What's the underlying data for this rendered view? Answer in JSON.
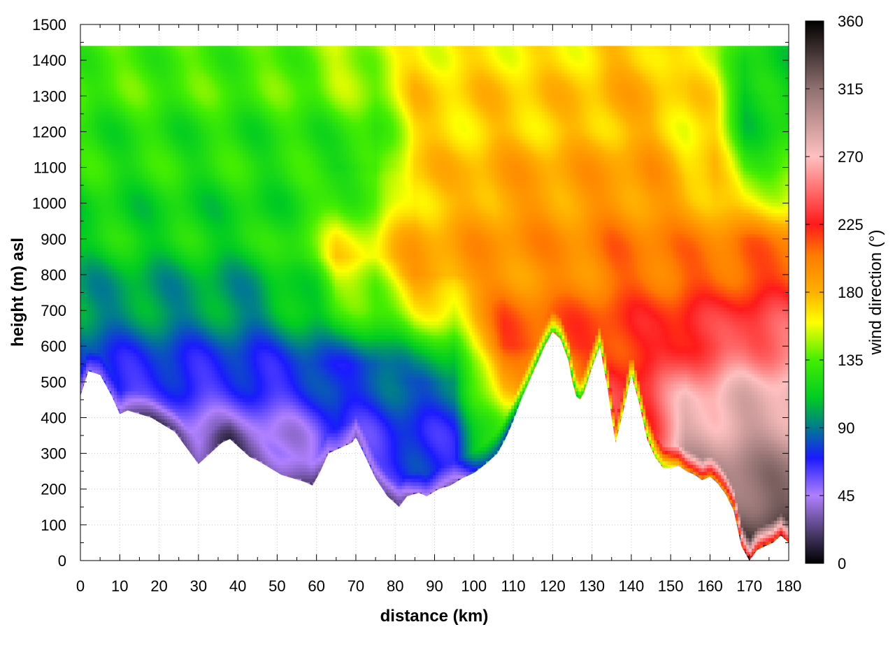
{
  "chart_data": {
    "type": "heatmap",
    "title": "",
    "xlabel": "distance (km)",
    "ylabel": "height (m) asl",
    "colorbar_label": "wind direction (°)",
    "xlim": [
      0,
      180
    ],
    "ylim": [
      0,
      1500
    ],
    "clim": [
      0,
      360
    ],
    "x_ticks": [
      0,
      10,
      20,
      30,
      40,
      50,
      60,
      70,
      80,
      90,
      100,
      110,
      120,
      130,
      140,
      150,
      160,
      170,
      180
    ],
    "y_ticks": [
      0,
      100,
      200,
      300,
      400,
      500,
      600,
      700,
      800,
      900,
      1000,
      1100,
      1200,
      1300,
      1400,
      1500
    ],
    "colorbar_ticks": [
      0,
      45,
      90,
      135,
      180,
      225,
      270,
      315,
      360
    ],
    "grid": true,
    "colormap": [
      {
        "v": 0,
        "color": "#000000"
      },
      {
        "v": 20,
        "color": "#4a3a6a"
      },
      {
        "v": 45,
        "color": "#b080ff"
      },
      {
        "v": 70,
        "color": "#1a1aff"
      },
      {
        "v": 90,
        "color": "#007a90"
      },
      {
        "v": 110,
        "color": "#00cc22"
      },
      {
        "v": 135,
        "color": "#44ee00"
      },
      {
        "v": 160,
        "color": "#ffff00"
      },
      {
        "v": 180,
        "color": "#ffb000"
      },
      {
        "v": 205,
        "color": "#ff7a00"
      },
      {
        "v": 225,
        "color": "#ff1a1a"
      },
      {
        "v": 270,
        "color": "#ffc0c0"
      },
      {
        "v": 315,
        "color": "#907070"
      },
      {
        "v": 360,
        "color": "#000000"
      }
    ],
    "terrain": {
      "x": [
        0,
        2,
        5,
        8,
        10,
        12,
        15,
        18,
        21,
        24,
        26,
        28,
        30,
        33,
        36,
        38,
        41,
        43,
        45,
        48,
        51,
        54,
        57,
        59,
        61,
        63,
        65,
        67,
        69,
        70,
        72,
        75,
        78,
        81,
        83,
        86,
        88,
        91,
        94,
        97,
        100,
        103,
        106,
        108,
        110,
        112,
        114,
        116,
        118,
        120,
        122,
        124,
        125,
        126,
        127,
        128,
        130,
        132,
        134,
        135,
        136,
        138,
        140,
        142,
        144,
        146,
        148,
        150,
        152,
        154,
        156,
        158,
        160,
        162,
        164,
        166,
        168,
        170,
        172,
        174,
        176,
        178,
        180
      ],
      "h": [
        460,
        530,
        520,
        460,
        410,
        420,
        410,
        400,
        380,
        360,
        330,
        300,
        270,
        300,
        330,
        340,
        310,
        290,
        280,
        260,
        240,
        230,
        220,
        210,
        250,
        300,
        310,
        320,
        330,
        345,
        300,
        230,
        180,
        150,
        180,
        190,
        180,
        200,
        210,
        230,
        245,
        270,
        300,
        340,
        390,
        450,
        500,
        550,
        600,
        640,
        620,
        560,
        500,
        460,
        450,
        470,
        540,
        600,
        480,
        400,
        330,
        420,
        520,
        440,
        340,
        290,
        260,
        260,
        265,
        250,
        240,
        225,
        235,
        215,
        185,
        140,
        40,
        0,
        30,
        40,
        50,
        70,
        50
      ]
    },
    "regions": [
      {
        "x_range": [
          0,
          60
        ],
        "profile_h": [
          0,
          350,
          550,
          700,
          900,
          1200,
          1500
        ],
        "profile_v": [
          20,
          40,
          75,
          95,
          115,
          125,
          140
        ]
      },
      {
        "x_range": [
          60,
          80
        ],
        "profile_h": [
          0,
          300,
          550,
          700,
          850,
          1100,
          1500
        ],
        "profile_v": [
          50,
          65,
          80,
          130,
          165,
          120,
          160
        ]
      },
      {
        "x_range": [
          80,
          100
        ],
        "profile_h": [
          0,
          300,
          500,
          650,
          800,
          1000,
          1500
        ],
        "profile_v": [
          60,
          70,
          85,
          140,
          190,
          175,
          165
        ]
      },
      {
        "x_range": [
          100,
          130
        ],
        "profile_h": [
          0,
          400,
          600,
          800,
          1000,
          1200,
          1500
        ],
        "profile_v": [
          80,
          150,
          215,
          195,
          190,
          175,
          165
        ]
      },
      {
        "x_range": [
          130,
          150
        ],
        "profile_h": [
          0,
          300,
          500,
          700,
          900,
          1200,
          1500
        ],
        "profile_v": [
          70,
          240,
          230,
          215,
          200,
          180,
          175
        ]
      },
      {
        "x_range": [
          150,
          165
        ],
        "profile_h": [
          0,
          250,
          450,
          600,
          800,
          1100,
          1500
        ],
        "profile_v": [
          330,
          300,
          270,
          235,
          210,
          170,
          160
        ]
      },
      {
        "x_range": [
          165,
          180
        ],
        "profile_h": [
          0,
          100,
          300,
          500,
          700,
          900,
          1100,
          1300,
          1440
        ],
        "profile_v": [
          355,
          330,
          300,
          270,
          230,
          200,
          130,
          110,
          120
        ]
      }
    ],
    "top_h": 1440
  }
}
